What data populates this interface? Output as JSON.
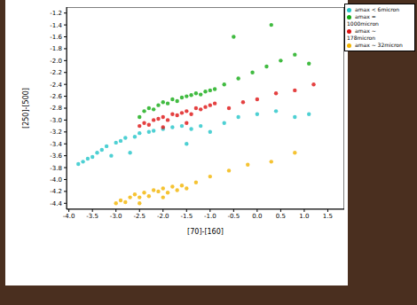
{
  "chart_data": {
    "type": "scatter",
    "xlabel": "[70]-[160]",
    "ylabel": "[250]-[500]",
    "xlim": [
      -4.05,
      1.85
    ],
    "ylim": [
      -4.5,
      -1.1
    ],
    "xticks": [
      {
        "value": -4,
        "label": "-4.0"
      },
      -3.5,
      {
        "value": -3,
        "label": "-3.0"
      },
      -2.5,
      {
        "value": -2,
        "label": "-2.0"
      },
      -1.5,
      {
        "value": -1,
        "label": "-1.0"
      },
      -0.5,
      {
        "value": 0,
        "label": "0.0"
      },
      0.5,
      {
        "value": 1,
        "label": "1.0"
      },
      1.5
    ],
    "yticks": [
      -4.4,
      -4.2,
      {
        "value": -4,
        "label": "-4.0"
      },
      -3.8,
      -3.6,
      -3.4,
      -3.2,
      {
        "value": -3,
        "label": "-3.0"
      },
      -2.8,
      -2.6,
      -2.4,
      -2.2,
      {
        "value": -2,
        "label": "-2.0"
      },
      -1.8,
      -1.6,
      -1.4,
      -1.2
    ],
    "grid": false,
    "legend": "upper right",
    "marker": "circle",
    "series": [
      {
        "name": "amax < 6micron",
        "color": "#22c4c8",
        "x": [
          -3.8,
          -3.7,
          -3.6,
          -3.5,
          -3.4,
          -3.3,
          -3.2,
          -3.0,
          -2.9,
          -2.8,
          -2.6,
          -2.5,
          -2.3,
          -2.2,
          -2.0,
          -1.8,
          -1.6,
          -1.4,
          -1.2,
          -1.0,
          -0.7,
          -0.4,
          0.0,
          0.4,
          0.8,
          1.1,
          -1.5,
          -2.7,
          -3.1
        ],
        "values": [
          -3.74,
          -3.7,
          -3.65,
          -3.62,
          -3.55,
          -3.5,
          -3.44,
          -3.38,
          -3.35,
          -3.3,
          -3.28,
          -3.22,
          -3.2,
          -3.18,
          -3.15,
          -3.12,
          -3.1,
          -3.15,
          -3.1,
          -3.2,
          -3.05,
          -2.95,
          -2.9,
          -2.85,
          -2.95,
          -2.9,
          -3.4,
          -3.55,
          -3.6
        ]
      },
      {
        "name": "amax ~ 32micron",
        "color": "#f2b400",
        "x": [
          -3.0,
          -2.9,
          -2.8,
          -2.7,
          -2.6,
          -2.5,
          -2.4,
          -2.3,
          -2.2,
          -2.1,
          -2.0,
          -1.9,
          -1.8,
          -1.7,
          -1.6,
          -1.5,
          -1.3,
          -1.0,
          -0.6,
          -0.2,
          0.3,
          0.8,
          -2.5,
          -2.0
        ],
        "values": [
          -4.4,
          -4.35,
          -4.38,
          -4.3,
          -4.25,
          -4.3,
          -4.22,
          -4.28,
          -4.18,
          -4.2,
          -4.15,
          -4.22,
          -4.12,
          -4.18,
          -4.1,
          -4.15,
          -4.05,
          -3.95,
          -3.85,
          -3.75,
          -3.7,
          -3.55,
          -4.4,
          -4.3
        ]
      },
      {
        "name": "amax ~ 178micron",
        "color": "#dd1111",
        "x": [
          -2.5,
          -2.4,
          -2.3,
          -2.2,
          -2.1,
          -2.0,
          -1.9,
          -1.8,
          -1.7,
          -1.6,
          -1.5,
          -1.4,
          -1.3,
          -1.2,
          -1.1,
          -1.0,
          -0.9,
          -0.6,
          -0.3,
          0.0,
          0.4,
          0.8,
          1.2,
          -2.0,
          -1.5
        ],
        "values": [
          -3.1,
          -3.05,
          -3.08,
          -3.0,
          -2.98,
          -2.95,
          -3.0,
          -2.9,
          -2.92,
          -2.88,
          -2.85,
          -2.9,
          -2.8,
          -2.82,
          -2.78,
          -2.75,
          -2.72,
          -2.8,
          -2.7,
          -2.65,
          -2.55,
          -2.5,
          -2.4,
          -3.12,
          -3.05
        ]
      },
      {
        "name": "amax = 1000micron",
        "color": "#11aa11",
        "x": [
          -2.5,
          -2.4,
          -2.3,
          -2.2,
          -2.1,
          -2.0,
          -1.9,
          -1.8,
          -1.7,
          -1.6,
          -1.5,
          -1.4,
          -1.3,
          -1.2,
          -1.1,
          -1.0,
          -0.9,
          -0.7,
          -0.4,
          -0.1,
          0.2,
          0.5,
          0.8,
          1.1,
          -0.5,
          0.3
        ],
        "values": [
          -2.95,
          -2.85,
          -2.8,
          -2.82,
          -2.75,
          -2.7,
          -2.72,
          -2.65,
          -2.68,
          -2.62,
          -2.6,
          -2.58,
          -2.55,
          -2.57,
          -2.52,
          -2.5,
          -2.48,
          -2.4,
          -2.3,
          -2.2,
          -2.1,
          -2.0,
          -1.9,
          -2.05,
          -1.6,
          -1.4
        ]
      }
    ]
  }
}
